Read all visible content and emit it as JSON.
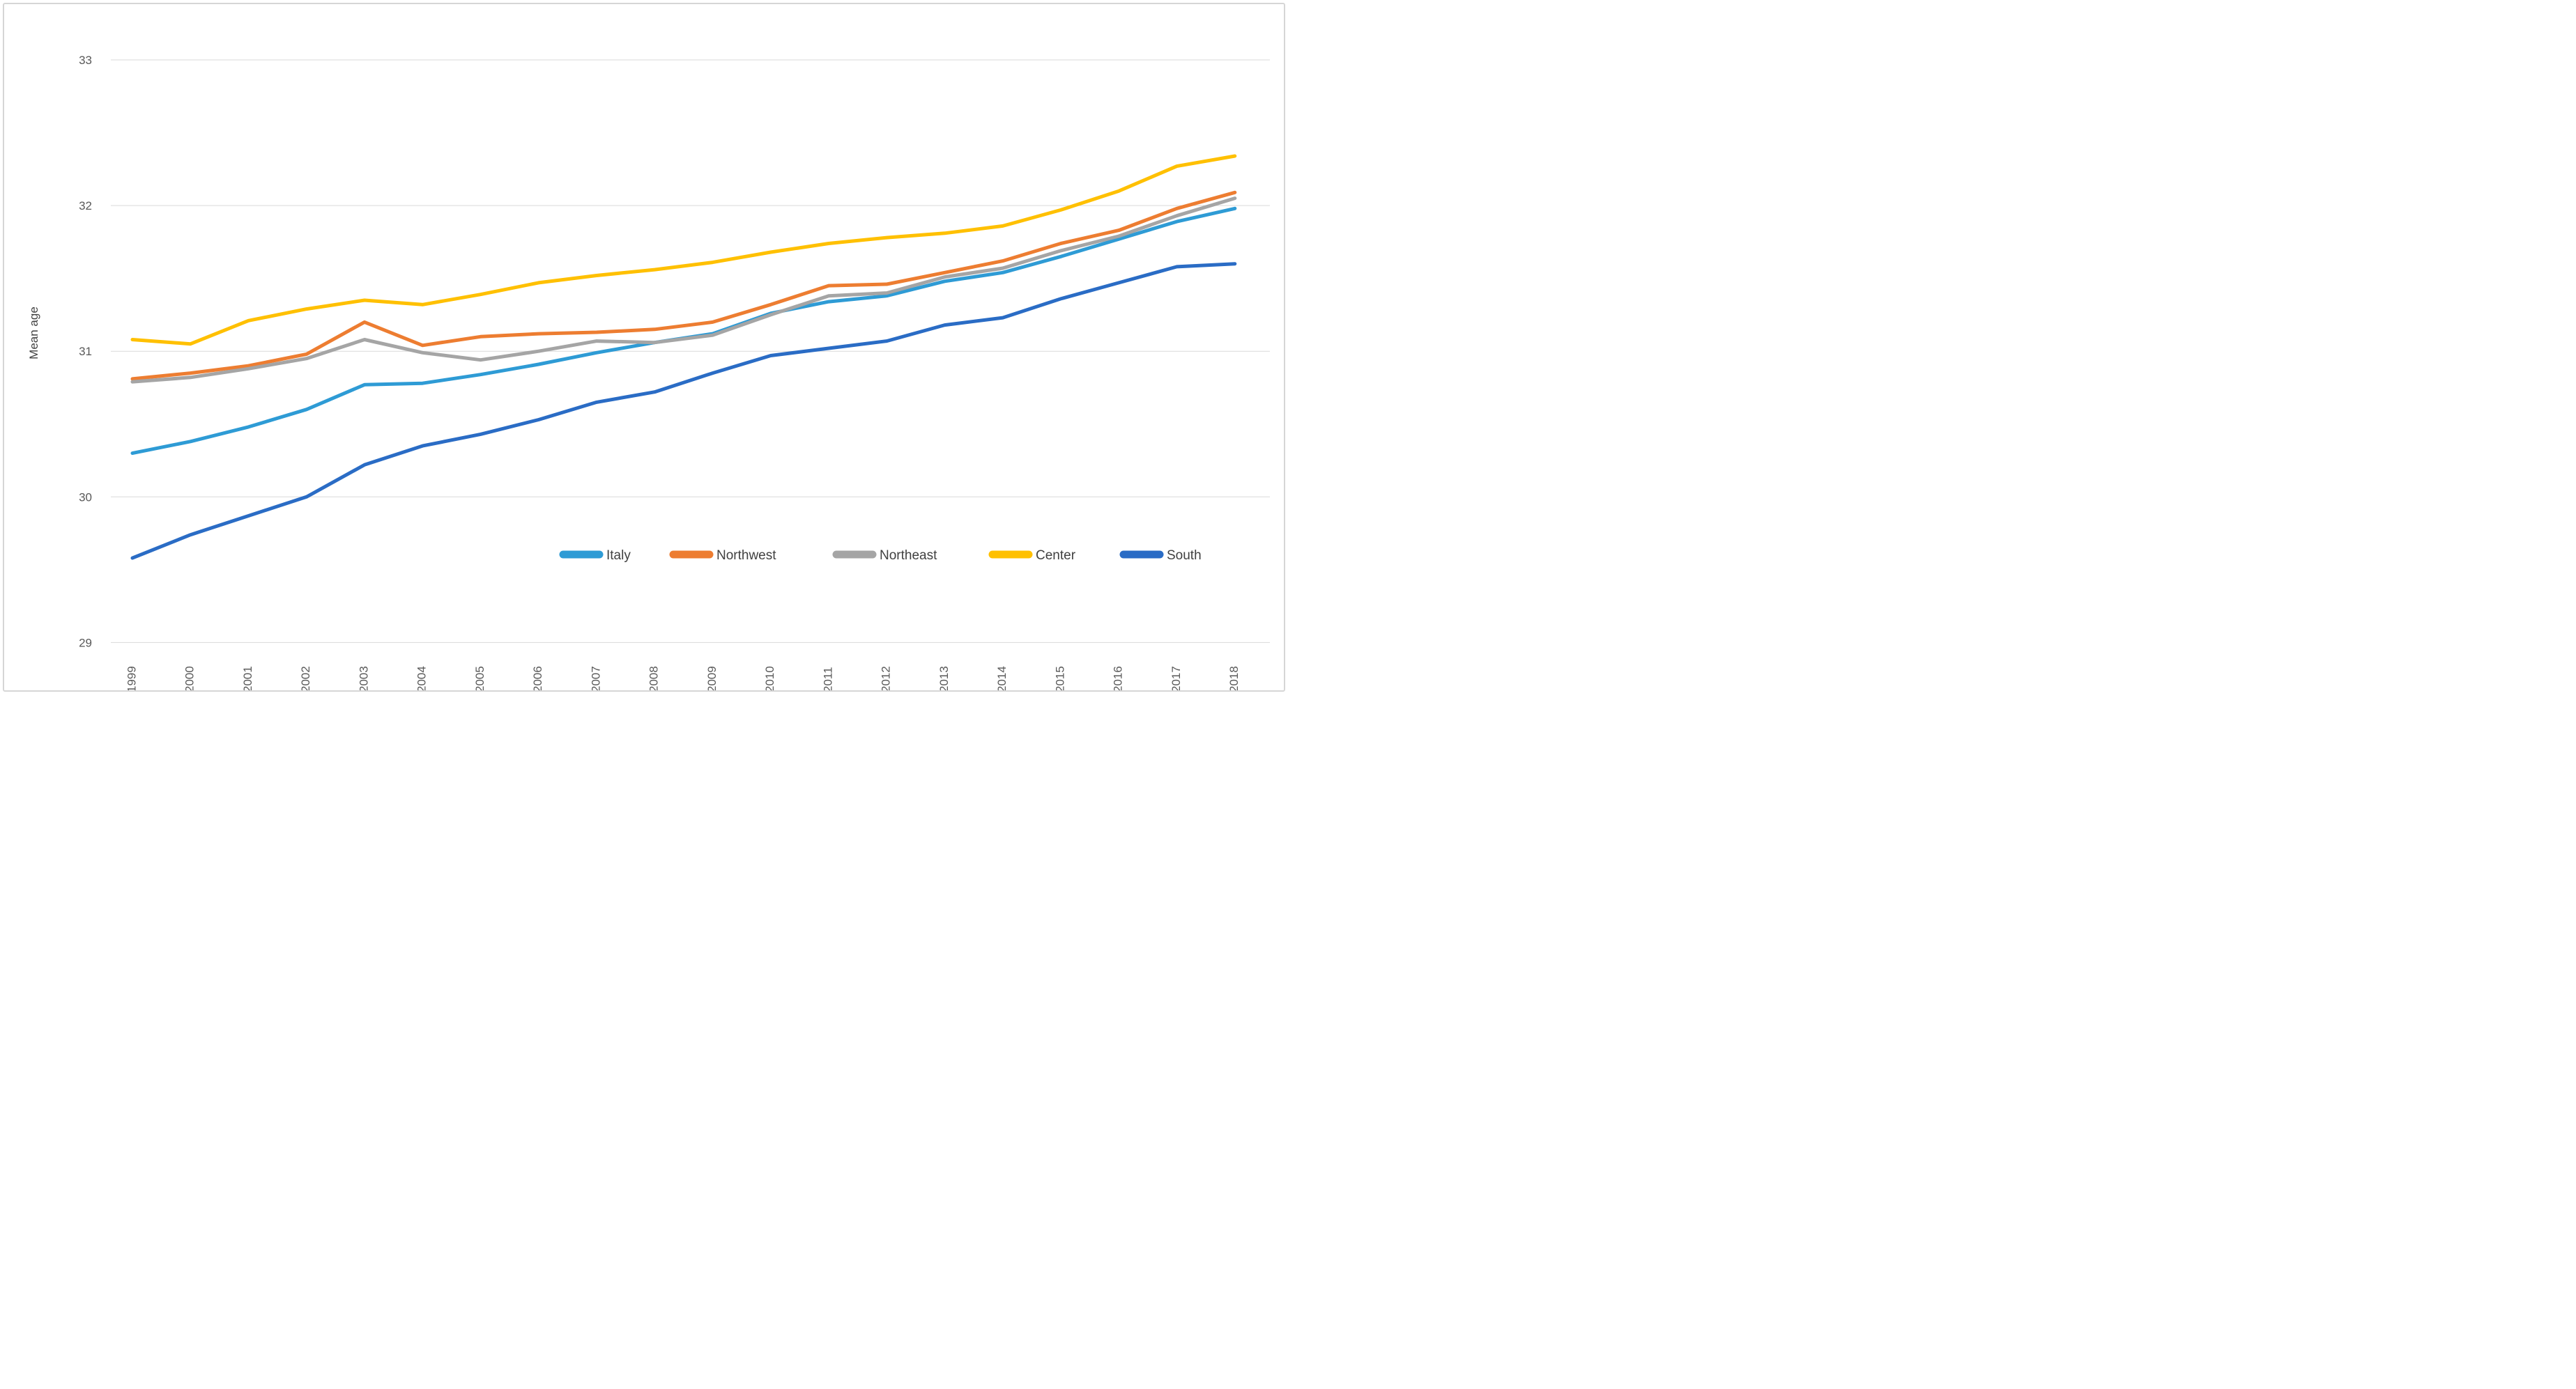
{
  "chart_data": {
    "type": "line",
    "title": "",
    "xlabel": "",
    "ylabel": "Mean age",
    "x": [
      1999,
      2000,
      2001,
      2002,
      2003,
      2004,
      2005,
      2006,
      2007,
      2008,
      2009,
      2010,
      2011,
      2012,
      2013,
      2014,
      2015,
      2016,
      2017,
      2018
    ],
    "ylim": [
      29,
      33
    ],
    "yticks": [
      29,
      30,
      31,
      32,
      33
    ],
    "grid": true,
    "legend_position": "bottom",
    "series": [
      {
        "name": "Italy",
        "color": "#2E9BD5",
        "values": [
          30.3,
          30.38,
          30.48,
          30.6,
          30.77,
          30.78,
          30.84,
          30.91,
          30.99,
          31.06,
          31.12,
          31.26,
          31.34,
          31.38,
          31.48,
          31.54,
          31.65,
          31.77,
          31.89,
          31.98
        ]
      },
      {
        "name": "Northwest",
        "color": "#ED7D31",
        "values": [
          30.81,
          30.85,
          30.9,
          30.98,
          31.2,
          31.04,
          31.1,
          31.12,
          31.13,
          31.15,
          31.2,
          31.32,
          31.45,
          31.46,
          31.54,
          31.62,
          31.74,
          31.83,
          31.98,
          32.09
        ]
      },
      {
        "name": "Northeast",
        "color": "#A5A5A5",
        "values": [
          30.79,
          30.82,
          30.88,
          30.95,
          31.08,
          30.99,
          30.94,
          31.0,
          31.07,
          31.06,
          31.11,
          31.25,
          31.38,
          31.4,
          31.51,
          31.57,
          31.69,
          31.79,
          31.93,
          32.05
        ]
      },
      {
        "name": "Center",
        "color": "#FFC000",
        "values": [
          31.08,
          31.05,
          31.21,
          31.29,
          31.35,
          31.32,
          31.39,
          31.47,
          31.52,
          31.56,
          31.61,
          31.68,
          31.74,
          31.78,
          31.81,
          31.86,
          31.97,
          32.1,
          32.27,
          32.34
        ]
      },
      {
        "name": "South",
        "color": "#2A6CC5",
        "values": [
          29.58,
          29.74,
          29.87,
          30.0,
          30.22,
          30.35,
          30.43,
          30.53,
          30.65,
          30.72,
          30.85,
          30.97,
          31.02,
          31.07,
          31.18,
          31.23,
          31.36,
          31.47,
          31.58,
          31.6
        ]
      }
    ],
    "colors": {
      "gridline": "#d9d9d9",
      "tick_text": "#595959",
      "legend_text": "#404040",
      "background": "#ffffff"
    }
  }
}
